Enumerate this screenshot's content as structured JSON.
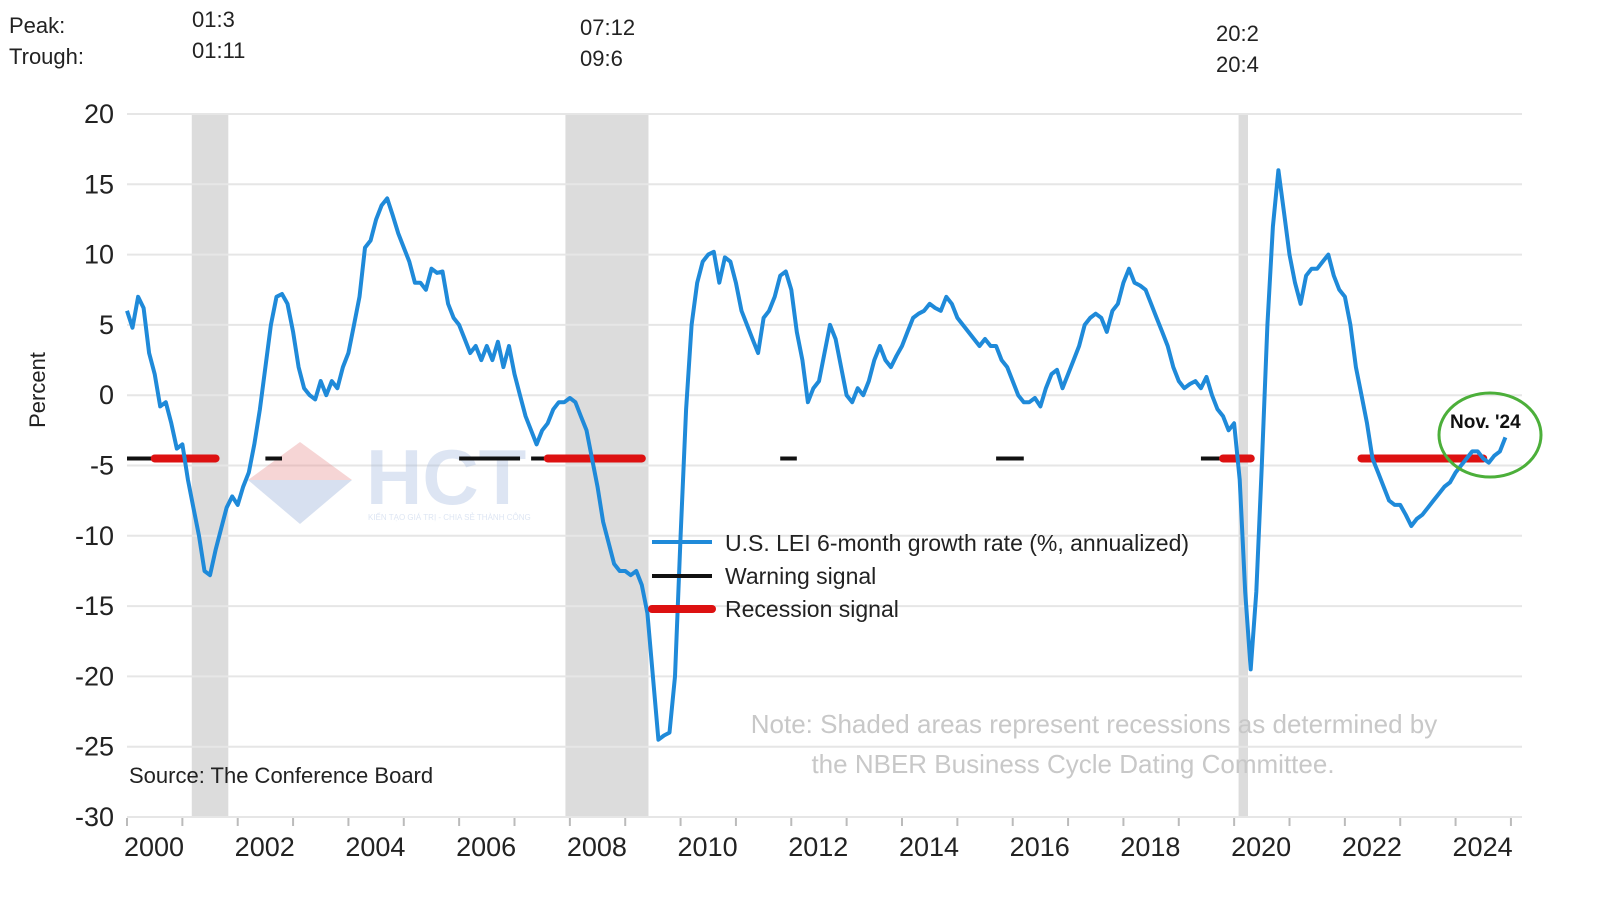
{
  "header": {
    "peak_label": "Peak:",
    "trough_label": "Trough:",
    "recessions": [
      {
        "peak": "01:3",
        "trough": "01:11"
      },
      {
        "peak": "07:12",
        "trough": "09:6"
      },
      {
        "peak": "20:2",
        "trough": "20:4"
      }
    ]
  },
  "chart_data": {
    "type": "line",
    "ylabel": "Percent",
    "ylim": [
      -30,
      20
    ],
    "yticks": [
      20,
      15,
      10,
      5,
      0,
      -5,
      -10,
      -15,
      -20,
      -25,
      -30
    ],
    "xlim": [
      2000,
      2025.2
    ],
    "xticks": [
      "2000",
      "2002",
      "2004",
      "2006",
      "2008",
      "2010",
      "2012",
      "2014",
      "2016",
      "2018",
      "2020",
      "2022",
      "2024"
    ],
    "grid": true,
    "legend_position": "center",
    "recession_shading": [
      [
        2001.17,
        2001.83
      ],
      [
        2007.92,
        2009.42
      ],
      [
        2020.08,
        2020.25
      ]
    ],
    "series": [
      {
        "name": "U.S. LEI 6-month growth rate (%, annualized)",
        "color": "#1f8ad9",
        "points": [
          [
            2000.0,
            6.0
          ],
          [
            2000.1,
            4.8
          ],
          [
            2000.2,
            7.0
          ],
          [
            2000.3,
            6.2
          ],
          [
            2000.4,
            3.0
          ],
          [
            2000.5,
            1.5
          ],
          [
            2000.6,
            -0.8
          ],
          [
            2000.7,
            -0.5
          ],
          [
            2000.8,
            -2.0
          ],
          [
            2000.9,
            -3.8
          ],
          [
            2001.0,
            -3.5
          ],
          [
            2001.1,
            -6.0
          ],
          [
            2001.2,
            -8.0
          ],
          [
            2001.3,
            -10.0
          ],
          [
            2001.4,
            -12.5
          ],
          [
            2001.5,
            -12.8
          ],
          [
            2001.6,
            -11.0
          ],
          [
            2001.7,
            -9.5
          ],
          [
            2001.8,
            -8.0
          ],
          [
            2001.9,
            -7.2
          ],
          [
            2002.0,
            -7.8
          ],
          [
            2002.1,
            -6.5
          ],
          [
            2002.2,
            -5.5
          ],
          [
            2002.3,
            -3.5
          ],
          [
            2002.4,
            -1.0
          ],
          [
            2002.5,
            2.0
          ],
          [
            2002.6,
            5.0
          ],
          [
            2002.7,
            7.0
          ],
          [
            2002.8,
            7.2
          ],
          [
            2002.9,
            6.5
          ],
          [
            2003.0,
            4.5
          ],
          [
            2003.1,
            2.0
          ],
          [
            2003.2,
            0.5
          ],
          [
            2003.3,
            0.0
          ],
          [
            2003.4,
            -0.3
          ],
          [
            2003.5,
            1.0
          ],
          [
            2003.6,
            0.0
          ],
          [
            2003.7,
            1.0
          ],
          [
            2003.8,
            0.5
          ],
          [
            2003.9,
            2.0
          ],
          [
            2004.0,
            3.0
          ],
          [
            2004.1,
            5.0
          ],
          [
            2004.2,
            7.0
          ],
          [
            2004.3,
            10.5
          ],
          [
            2004.4,
            11.0
          ],
          [
            2004.5,
            12.5
          ],
          [
            2004.6,
            13.5
          ],
          [
            2004.7,
            14.0
          ],
          [
            2004.8,
            12.8
          ],
          [
            2004.9,
            11.5
          ],
          [
            2005.0,
            10.5
          ],
          [
            2005.1,
            9.5
          ],
          [
            2005.2,
            8.0
          ],
          [
            2005.3,
            8.0
          ],
          [
            2005.4,
            7.5
          ],
          [
            2005.5,
            9.0
          ],
          [
            2005.6,
            8.7
          ],
          [
            2005.7,
            8.8
          ],
          [
            2005.8,
            6.5
          ],
          [
            2005.9,
            5.5
          ],
          [
            2006.0,
            5.0
          ],
          [
            2006.1,
            4.0
          ],
          [
            2006.2,
            3.0
          ],
          [
            2006.3,
            3.5
          ],
          [
            2006.4,
            2.5
          ],
          [
            2006.5,
            3.5
          ],
          [
            2006.6,
            2.5
          ],
          [
            2006.7,
            3.8
          ],
          [
            2006.8,
            2.0
          ],
          [
            2006.9,
            3.5
          ],
          [
            2007.0,
            1.5
          ],
          [
            2007.1,
            0.0
          ],
          [
            2007.2,
            -1.5
          ],
          [
            2007.3,
            -2.5
          ],
          [
            2007.4,
            -3.5
          ],
          [
            2007.5,
            -2.5
          ],
          [
            2007.6,
            -2.0
          ],
          [
            2007.7,
            -1.0
          ],
          [
            2007.8,
            -0.5
          ],
          [
            2007.9,
            -0.5
          ],
          [
            2008.0,
            -0.2
          ],
          [
            2008.1,
            -0.5
          ],
          [
            2008.2,
            -1.5
          ],
          [
            2008.3,
            -2.5
          ],
          [
            2008.4,
            -4.5
          ],
          [
            2008.5,
            -6.5
          ],
          [
            2008.6,
            -9.0
          ],
          [
            2008.7,
            -10.5
          ],
          [
            2008.8,
            -12.0
          ],
          [
            2008.9,
            -12.5
          ],
          [
            2009.0,
            -12.5
          ],
          [
            2009.1,
            -12.8
          ],
          [
            2009.2,
            -12.5
          ],
          [
            2009.3,
            -13.5
          ],
          [
            2009.4,
            -15.5
          ],
          [
            2009.5,
            -20.0
          ],
          [
            2009.6,
            -24.5
          ],
          [
            2009.7,
            -24.2
          ],
          [
            2009.8,
            -24.0
          ],
          [
            2009.9,
            -20.0
          ],
          [
            2010.0,
            -10.0
          ],
          [
            2010.1,
            -1.0
          ],
          [
            2010.2,
            5.0
          ],
          [
            2010.3,
            8.0
          ],
          [
            2010.4,
            9.5
          ],
          [
            2010.5,
            10.0
          ],
          [
            2010.6,
            10.2
          ],
          [
            2010.7,
            8.0
          ],
          [
            2010.8,
            9.8
          ],
          [
            2010.9,
            9.5
          ],
          [
            2011.0,
            8.0
          ],
          [
            2011.1,
            6.0
          ],
          [
            2011.2,
            5.0
          ],
          [
            2011.3,
            4.0
          ],
          [
            2011.4,
            3.0
          ],
          [
            2011.5,
            5.5
          ],
          [
            2011.6,
            6.0
          ],
          [
            2011.7,
            7.0
          ],
          [
            2011.8,
            8.5
          ],
          [
            2011.9,
            8.8
          ],
          [
            2012.0,
            7.5
          ],
          [
            2012.1,
            4.5
          ],
          [
            2012.2,
            2.5
          ],
          [
            2012.3,
            -0.5
          ],
          [
            2012.4,
            0.5
          ],
          [
            2012.5,
            1.0
          ],
          [
            2012.6,
            3.0
          ],
          [
            2012.7,
            5.0
          ],
          [
            2012.8,
            4.0
          ],
          [
            2012.9,
            2.0
          ],
          [
            2013.0,
            0.0
          ],
          [
            2013.1,
            -0.5
          ],
          [
            2013.2,
            0.5
          ],
          [
            2013.3,
            0.0
          ],
          [
            2013.4,
            1.0
          ],
          [
            2013.5,
            2.5
          ],
          [
            2013.6,
            3.5
          ],
          [
            2013.7,
            2.5
          ],
          [
            2013.8,
            2.0
          ],
          [
            2013.9,
            2.8
          ],
          [
            2014.0,
            3.5
          ],
          [
            2014.1,
            4.5
          ],
          [
            2014.2,
            5.5
          ],
          [
            2014.3,
            5.8
          ],
          [
            2014.4,
            6.0
          ],
          [
            2014.5,
            6.5
          ],
          [
            2014.6,
            6.2
          ],
          [
            2014.7,
            6.0
          ],
          [
            2014.8,
            7.0
          ],
          [
            2014.9,
            6.5
          ],
          [
            2015.0,
            5.5
          ],
          [
            2015.1,
            5.0
          ],
          [
            2015.2,
            4.5
          ],
          [
            2015.3,
            4.0
          ],
          [
            2015.4,
            3.5
          ],
          [
            2015.5,
            4.0
          ],
          [
            2015.6,
            3.5
          ],
          [
            2015.7,
            3.5
          ],
          [
            2015.8,
            2.5
          ],
          [
            2015.9,
            2.0
          ],
          [
            2016.0,
            1.0
          ],
          [
            2016.1,
            0.0
          ],
          [
            2016.2,
            -0.5
          ],
          [
            2016.3,
            -0.5
          ],
          [
            2016.4,
            -0.2
          ],
          [
            2016.5,
            -0.8
          ],
          [
            2016.6,
            0.5
          ],
          [
            2016.7,
            1.5
          ],
          [
            2016.8,
            1.8
          ],
          [
            2016.9,
            0.5
          ],
          [
            2017.0,
            1.5
          ],
          [
            2017.1,
            2.5
          ],
          [
            2017.2,
            3.5
          ],
          [
            2017.3,
            5.0
          ],
          [
            2017.4,
            5.5
          ],
          [
            2017.5,
            5.8
          ],
          [
            2017.6,
            5.5
          ],
          [
            2017.7,
            4.5
          ],
          [
            2017.8,
            6.0
          ],
          [
            2017.9,
            6.5
          ],
          [
            2018.0,
            8.0
          ],
          [
            2018.1,
            9.0
          ],
          [
            2018.2,
            8.0
          ],
          [
            2018.3,
            7.8
          ],
          [
            2018.4,
            7.5
          ],
          [
            2018.5,
            6.5
          ],
          [
            2018.6,
            5.5
          ],
          [
            2018.7,
            4.5
          ],
          [
            2018.8,
            3.5
          ],
          [
            2018.9,
            2.0
          ],
          [
            2019.0,
            1.0
          ],
          [
            2019.1,
            0.5
          ],
          [
            2019.2,
            0.8
          ],
          [
            2019.3,
            1.0
          ],
          [
            2019.4,
            0.5
          ],
          [
            2019.5,
            1.3
          ],
          [
            2019.6,
            0.0
          ],
          [
            2019.7,
            -1.0
          ],
          [
            2019.8,
            -1.5
          ],
          [
            2019.9,
            -2.5
          ],
          [
            2020.0,
            -2.0
          ],
          [
            2020.1,
            -6.0
          ],
          [
            2020.2,
            -14.0
          ],
          [
            2020.3,
            -19.5
          ],
          [
            2020.4,
            -14.0
          ],
          [
            2020.5,
            -5.0
          ],
          [
            2020.6,
            5.0
          ],
          [
            2020.7,
            12.0
          ],
          [
            2020.8,
            16.0
          ],
          [
            2020.9,
            13.0
          ],
          [
            2021.0,
            10.0
          ],
          [
            2021.1,
            8.0
          ],
          [
            2021.2,
            6.5
          ],
          [
            2021.3,
            8.5
          ],
          [
            2021.4,
            9.0
          ],
          [
            2021.5,
            9.0
          ],
          [
            2021.6,
            9.5
          ],
          [
            2021.7,
            10.0
          ],
          [
            2021.8,
            8.5
          ],
          [
            2021.9,
            7.5
          ],
          [
            2022.0,
            7.0
          ],
          [
            2022.1,
            5.0
          ],
          [
            2022.2,
            2.0
          ],
          [
            2022.3,
            0.0
          ],
          [
            2022.4,
            -2.0
          ],
          [
            2022.5,
            -4.5
          ],
          [
            2022.6,
            -5.5
          ],
          [
            2022.7,
            -6.5
          ],
          [
            2022.8,
            -7.5
          ],
          [
            2022.9,
            -7.8
          ],
          [
            2023.0,
            -7.8
          ],
          [
            2023.1,
            -8.5
          ],
          [
            2023.2,
            -9.3
          ],
          [
            2023.3,
            -8.8
          ],
          [
            2023.4,
            -8.5
          ],
          [
            2023.5,
            -8.0
          ],
          [
            2023.6,
            -7.5
          ],
          [
            2023.7,
            -7.0
          ],
          [
            2023.8,
            -6.5
          ],
          [
            2023.9,
            -6.2
          ],
          [
            2024.0,
            -5.5
          ],
          [
            2024.1,
            -5.0
          ],
          [
            2024.2,
            -4.5
          ],
          [
            2024.3,
            -4.0
          ],
          [
            2024.4,
            -4.0
          ],
          [
            2024.5,
            -4.5
          ],
          [
            2024.6,
            -4.8
          ],
          [
            2024.7,
            -4.3
          ],
          [
            2024.8,
            -4.0
          ],
          [
            2024.9,
            -3.0
          ]
        ]
      },
      {
        "name": "Warning signal",
        "color": "#111111",
        "segments": [
          [
            2000.0,
            2001.5
          ],
          [
            2002.5,
            2002.8
          ],
          [
            2006.0,
            2007.1
          ],
          [
            2007.3,
            2007.6
          ],
          [
            2011.8,
            2012.1
          ],
          [
            2015.7,
            2016.2
          ],
          [
            2019.4,
            2019.8
          ]
        ]
      },
      {
        "name": "Recession signal",
        "color": "#dd1111",
        "segments": [
          [
            2000.5,
            2001.6
          ],
          [
            2007.6,
            2009.3
          ],
          [
            2019.8,
            2020.3
          ],
          [
            2022.3,
            2024.5
          ]
        ]
      }
    ],
    "annotations": {
      "source": "Source: The Conference Board",
      "note_line1": "Note: Shaded areas represent recessions as determined by",
      "note_line2": "the NBER Business Cycle Dating Committee.",
      "callout": "Nov. '24"
    },
    "colors": {
      "recession_shade": "#dcdcdc",
      "grid": "#e6e6e6",
      "callout_circle": "#4caf3a",
      "note_text": "#c8c8c8"
    }
  },
  "watermark": {
    "text": "HCT",
    "tagline": "KIẾN TẠO GIÁ TRỊ - CHIA SẺ THÀNH CÔNG"
  }
}
